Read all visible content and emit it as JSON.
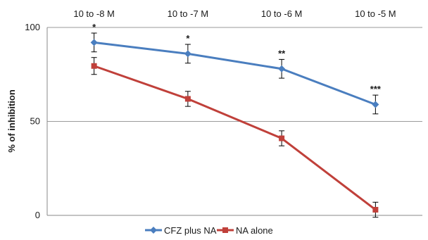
{
  "chart_data": {
    "type": "line",
    "categories": [
      "10 to -8 M",
      "10 to -7 M",
      "10 to -6 M",
      "10 to -5 M"
    ],
    "ylabel": "% of inhibition",
    "ylim": [
      0,
      100
    ],
    "yticks": [
      0,
      50,
      100
    ],
    "grid": "horizontal",
    "legend_position": "bottom",
    "series": [
      {
        "name": "CFZ plus NA",
        "color": "#4a7ebf",
        "marker": "diamond",
        "values": [
          92,
          86,
          78,
          59
        ],
        "errors": [
          5,
          5,
          5,
          5
        ],
        "significance": [
          "*",
          "*",
          "**",
          "***"
        ]
      },
      {
        "name": "NA alone",
        "color": "#c0403a",
        "marker": "square",
        "values": [
          79.5,
          62,
          41,
          3
        ],
        "errors": [
          4.5,
          4,
          4,
          4
        ],
        "significance": [
          "",
          "",
          "",
          ""
        ]
      }
    ]
  }
}
